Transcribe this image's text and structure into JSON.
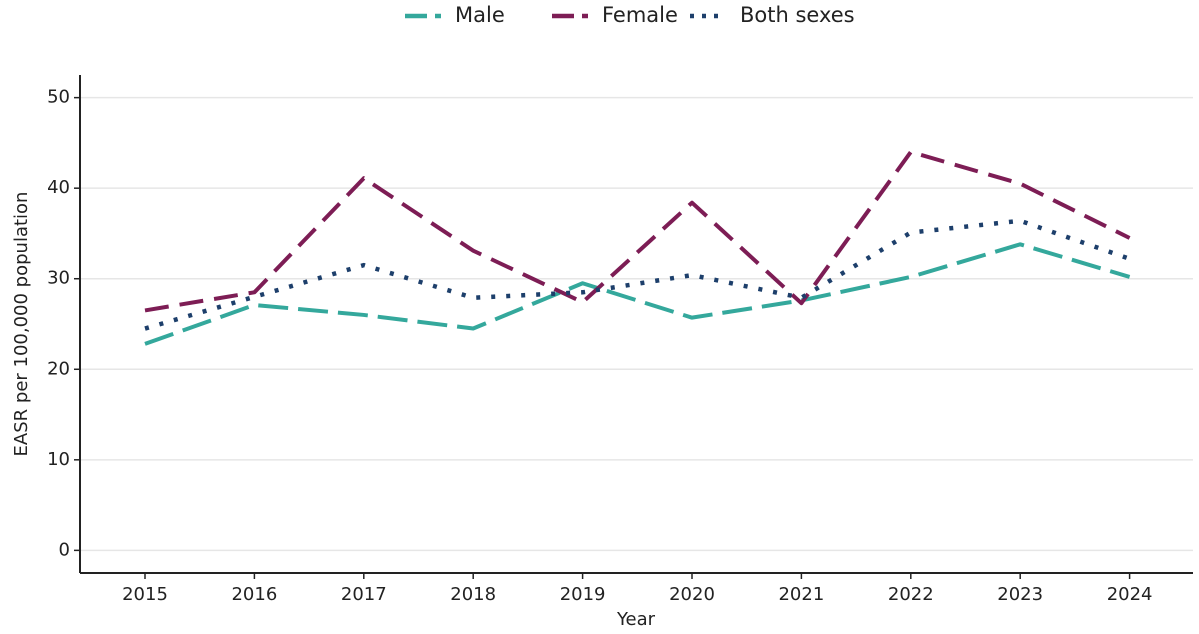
{
  "chart_data": {
    "type": "line",
    "xlabel": "Year",
    "ylabel": "EASR per 100,000 population",
    "categories": [
      "2015",
      "2016",
      "2017",
      "2018",
      "2019",
      "2020",
      "2021",
      "2022",
      "2023",
      "2024"
    ],
    "series": [
      {
        "name": "Male",
        "color": "#34a89c",
        "dash": "30 10",
        "values": [
          22.8,
          27.1,
          26.0,
          24.5,
          29.5,
          25.7,
          27.6,
          30.2,
          33.8,
          30.2
        ]
      },
      {
        "name": "Female",
        "color": "#7d1d55",
        "dash": "24 11",
        "values": [
          26.5,
          28.5,
          41.1,
          33.1,
          27.4,
          38.4,
          27.3,
          44.0,
          40.5,
          34.5
        ]
      },
      {
        "name": "Both sexes",
        "color": "#1d3f6b",
        "dash": "4 11",
        "values": [
          24.5,
          28.0,
          31.5,
          27.9,
          28.5,
          30.4,
          27.9,
          35.1,
          36.4,
          32.2
        ]
      }
    ],
    "ylim": [
      -2.5,
      52.5
    ],
    "yticks": [
      0,
      10,
      20,
      30,
      40,
      50
    ],
    "grid": true,
    "legend": "top"
  }
}
